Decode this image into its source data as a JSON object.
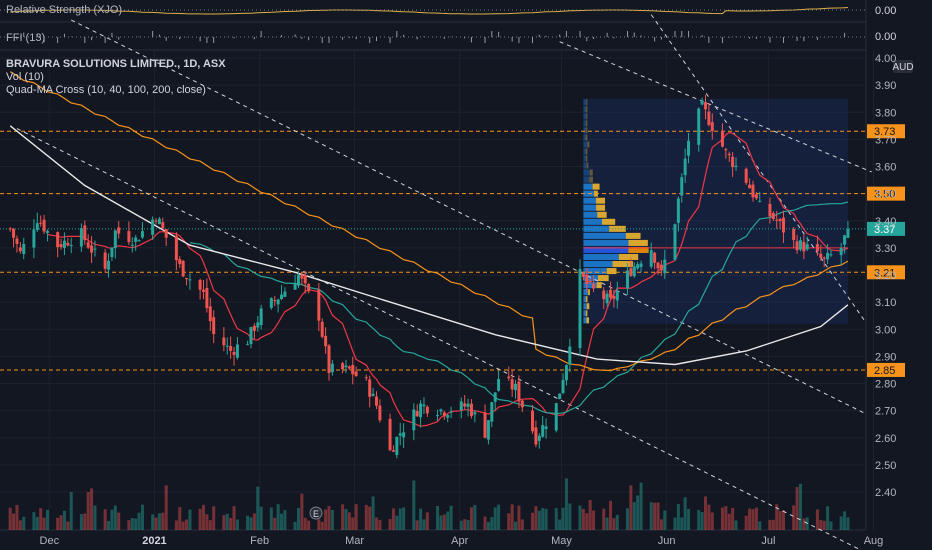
{
  "indicators": {
    "rs_label": "Relative Strength (XJO)",
    "rs_value": "0.00",
    "ffi_label": "FFI (13)",
    "ffi_value": "0.00"
  },
  "legend": {
    "title": "BRAVURA SOLUTIONS LIMITED., 1D, ASX",
    "vol": "Vol (10)",
    "quad": "Quad-MA Cross (10, 40, 100, 200, close)"
  },
  "currency": "AUD",
  "earnings_marker": "E",
  "colors": {
    "background": "#131722",
    "up": "#26a69a",
    "down": "#ef5350",
    "ma10": "#f23645",
    "ma40": "#26a69a",
    "ma100": "#f7931a",
    "ma200": "#e8e8e8",
    "level": "#f7931a",
    "current": "#26a69a"
  },
  "chart_data": {
    "type": "candlestick",
    "ylim": [
      2.33,
      4.0
    ],
    "yticks": [
      "4.00",
      "3.90",
      "3.80",
      "3.70",
      "3.60",
      "3.50",
      "3.40",
      "3.30",
      "3.20",
      "3.10",
      "3.00",
      "2.90",
      "2.80",
      "2.70",
      "2.60",
      "2.50",
      "2.40"
    ],
    "xticks": [
      "Dec",
      "2021",
      "Feb",
      "Mar",
      "Apr",
      "May",
      "Jun",
      "Jul",
      "Aug"
    ],
    "price_levels": [
      {
        "value": 3.73,
        "label": "3.73"
      },
      {
        "value": 3.5,
        "label": "3.50"
      },
      {
        "value": 3.21,
        "label": "3.21"
      },
      {
        "value": 2.85,
        "label": "2.85"
      }
    ],
    "current_price": {
      "value": 3.37,
      "label": "3.37"
    },
    "close_anchors": [
      [
        "2020-11-23",
        3.37
      ],
      [
        "2020-11-26",
        3.28
      ],
      [
        "2020-12-01",
        3.41
      ],
      [
        "2020-12-07",
        3.31
      ],
      [
        "2020-12-14",
        3.35
      ],
      [
        "2020-12-21",
        3.22
      ],
      [
        "2020-12-24",
        3.36
      ],
      [
        "2020-12-30",
        3.33
      ],
      [
        "2021-01-05",
        3.42
      ],
      [
        "2021-01-12",
        3.23
      ],
      [
        "2021-01-19",
        3.13
      ],
      [
        "2021-01-22",
        2.98
      ],
      [
        "2021-01-27",
        2.92
      ],
      [
        "2021-02-01",
        2.96
      ],
      [
        "2021-02-05",
        3.06
      ],
      [
        "2021-02-11",
        3.13
      ],
      [
        "2021-02-16",
        3.2
      ],
      [
        "2021-02-22",
        3.05
      ],
      [
        "2021-02-25",
        2.85
      ],
      [
        "2021-03-03",
        2.85
      ],
      [
        "2021-03-08",
        2.8
      ],
      [
        "2021-03-11",
        2.72
      ],
      [
        "2021-03-15",
        2.55
      ],
      [
        "2021-03-18",
        2.62
      ],
      [
        "2021-03-24",
        2.72
      ],
      [
        "2021-03-31",
        2.7
      ],
      [
        "2021-04-07",
        2.72
      ],
      [
        "2021-04-12",
        2.62
      ],
      [
        "2021-04-16",
        2.82
      ],
      [
        "2021-04-21",
        2.78
      ],
      [
        "2021-04-27",
        2.6
      ],
      [
        "2021-05-03",
        2.72
      ],
      [
        "2021-05-06",
        2.88
      ],
      [
        "2021-05-10",
        3.2
      ],
      [
        "2021-05-13",
        3.15
      ],
      [
        "2021-05-19",
        3.1
      ],
      [
        "2021-05-25",
        3.22
      ],
      [
        "2021-05-31",
        3.3
      ],
      [
        "2021-06-03",
        3.2
      ],
      [
        "2021-06-07",
        3.4
      ],
      [
        "2021-06-11",
        3.7
      ],
      [
        "2021-06-15",
        3.82
      ],
      [
        "2021-06-18",
        3.75
      ],
      [
        "2021-06-22",
        3.65
      ],
      [
        "2021-06-28",
        3.55
      ],
      [
        "2021-07-02",
        3.45
      ],
      [
        "2021-07-07",
        3.4
      ],
      [
        "2021-07-12",
        3.32
      ],
      [
        "2021-07-16",
        3.3
      ],
      [
        "2021-07-21",
        3.25
      ],
      [
        "2021-07-26",
        3.3
      ],
      [
        "2021-07-28",
        3.37
      ]
    ],
    "moving_averages": [
      {
        "period": 10
      },
      {
        "period": 40
      },
      {
        "period": 100
      },
      {
        "period": 200,
        "points": [
          [
            "2020-11-23",
            3.75
          ],
          [
            "2020-12-15",
            3.53
          ],
          [
            "2021-01-15",
            3.31
          ],
          [
            "2021-02-15",
            3.21
          ],
          [
            "2021-03-15",
            3.1
          ],
          [
            "2021-04-15",
            2.98
          ],
          [
            "2021-05-15",
            2.89
          ],
          [
            "2021-06-07",
            2.87
          ],
          [
            "2021-06-28",
            2.92
          ],
          [
            "2021-07-20",
            3.01
          ],
          [
            "2021-07-28",
            3.09
          ]
        ]
      }
    ],
    "volume_profile": {
      "from": "2021-05-11",
      "to": "2021-07-28",
      "price_range": [
        3.02,
        3.85
      ],
      "poc": 3.3
    },
    "trendlines": [
      {
        "from": [
          "2020-12-11",
          4.14
        ],
        "to": [
          "2021-08-02",
          2.69
        ]
      },
      {
        "from": [
          "2020-11-25",
          3.74
        ],
        "to": [
          "2021-08-05",
          2.16
        ]
      },
      {
        "from": [
          "2021-05-04",
          4.06
        ],
        "to": [
          "2021-08-04",
          3.58
        ]
      },
      {
        "from": [
          "2021-05-31",
          4.16
        ],
        "to": [
          "2021-08-02",
          3.03
        ]
      }
    ]
  }
}
